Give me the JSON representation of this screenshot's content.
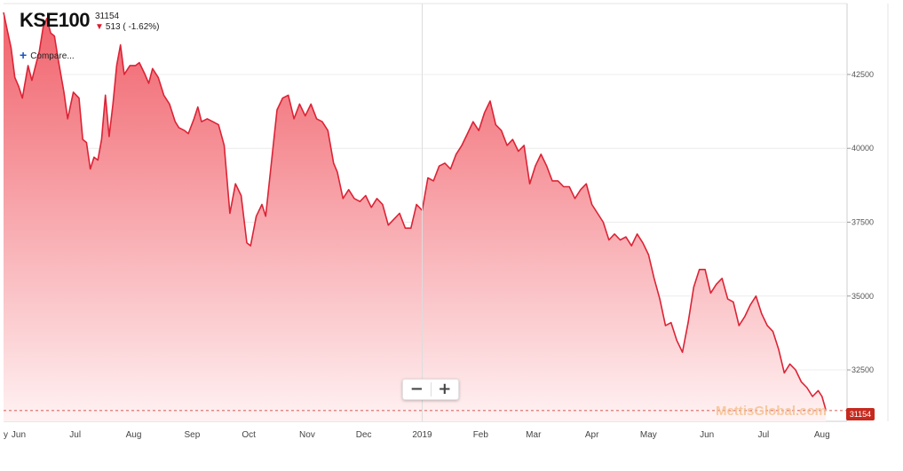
{
  "header": {
    "ticker": "KSE100",
    "price": "31154",
    "change": "513 ( -1.62%)",
    "compare_label": "Compare..."
  },
  "controls": {
    "zoom_out": "−",
    "zoom_in": "+"
  },
  "watermark": "MettisGlobal.com",
  "last_value_badge": "31154",
  "colors": {
    "line": "#dc2335",
    "fill_top": "#f05a64",
    "fill_bottom": "#fff2f3",
    "badge": "#c62a1e"
  },
  "chart_data": {
    "type": "area",
    "title": "",
    "xlabel": "",
    "ylabel": "",
    "ylim": [
      31000,
      44900
    ],
    "x_tick_labels": [
      "y",
      "Jun",
      "Jul",
      "Aug",
      "Sep",
      "Oct",
      "Nov",
      "Dec",
      "2019",
      "Feb",
      "Mar",
      "Apr",
      "May",
      "Jun",
      "Jul",
      "Aug"
    ],
    "y_ticks": [
      32500,
      35000,
      37500,
      40000,
      42500
    ],
    "y_tick_labels": [
      "32500",
      "35000",
      "37500",
      "40000",
      "42500"
    ],
    "reference_line": 31154,
    "series": [
      {
        "points": [
          [
            "2018-05-24",
            44600
          ],
          [
            "2018-05-26",
            44000
          ],
          [
            "2018-05-28",
            43400
          ],
          [
            "2018-05-30",
            42400
          ],
          [
            "2018-06-01",
            42100
          ],
          [
            "2018-06-03",
            41700
          ],
          [
            "2018-06-06",
            42800
          ],
          [
            "2018-06-08",
            42300
          ],
          [
            "2018-06-10",
            42800
          ],
          [
            "2018-06-12",
            43300
          ],
          [
            "2018-06-14",
            44100
          ],
          [
            "2018-06-16",
            44400
          ],
          [
            "2018-06-18",
            43900
          ],
          [
            "2018-06-20",
            43800
          ],
          [
            "2018-06-22",
            43000
          ],
          [
            "2018-06-25",
            41900
          ],
          [
            "2018-06-27",
            41000
          ],
          [
            "2018-06-30",
            41900
          ],
          [
            "2018-07-03",
            41700
          ],
          [
            "2018-07-05",
            40300
          ],
          [
            "2018-07-07",
            40200
          ],
          [
            "2018-07-09",
            39300
          ],
          [
            "2018-07-11",
            39700
          ],
          [
            "2018-07-13",
            39600
          ],
          [
            "2018-07-15",
            40300
          ],
          [
            "2018-07-17",
            41800
          ],
          [
            "2018-07-19",
            40400
          ],
          [
            "2018-07-21",
            41500
          ],
          [
            "2018-07-23",
            42800
          ],
          [
            "2018-07-25",
            43500
          ],
          [
            "2018-07-27",
            42500
          ],
          [
            "2018-07-30",
            42800
          ],
          [
            "2018-08-02",
            42800
          ],
          [
            "2018-08-04",
            42900
          ],
          [
            "2018-08-07",
            42500
          ],
          [
            "2018-08-09",
            42200
          ],
          [
            "2018-08-11",
            42700
          ],
          [
            "2018-08-14",
            42400
          ],
          [
            "2018-08-17",
            41800
          ],
          [
            "2018-08-20",
            41500
          ],
          [
            "2018-08-23",
            40900
          ],
          [
            "2018-08-25",
            40700
          ],
          [
            "2018-08-28",
            40600
          ],
          [
            "2018-08-30",
            40500
          ],
          [
            "2018-09-02",
            41000
          ],
          [
            "2018-09-04",
            41400
          ],
          [
            "2018-09-06",
            40900
          ],
          [
            "2018-09-09",
            41000
          ],
          [
            "2018-09-12",
            40900
          ],
          [
            "2018-09-15",
            40800
          ],
          [
            "2018-09-18",
            40100
          ],
          [
            "2018-09-21",
            37800
          ],
          [
            "2018-09-24",
            38800
          ],
          [
            "2018-09-27",
            38400
          ],
          [
            "2018-09-30",
            36800
          ],
          [
            "2018-10-02",
            36700
          ],
          [
            "2018-10-05",
            37700
          ],
          [
            "2018-10-08",
            38100
          ],
          [
            "2018-10-10",
            37700
          ],
          [
            "2018-10-13",
            39500
          ],
          [
            "2018-10-16",
            41300
          ],
          [
            "2018-10-19",
            41700
          ],
          [
            "2018-10-22",
            41800
          ],
          [
            "2018-10-25",
            41000
          ],
          [
            "2018-10-28",
            41500
          ],
          [
            "2018-10-31",
            41100
          ],
          [
            "2018-11-03",
            41500
          ],
          [
            "2018-11-06",
            41000
          ],
          [
            "2018-11-09",
            40900
          ],
          [
            "2018-11-12",
            40600
          ],
          [
            "2018-11-15",
            39500
          ],
          [
            "2018-11-17",
            39200
          ],
          [
            "2018-11-20",
            38300
          ],
          [
            "2018-11-23",
            38600
          ],
          [
            "2018-11-26",
            38300
          ],
          [
            "2018-11-29",
            38200
          ],
          [
            "2018-12-02",
            38400
          ],
          [
            "2018-12-05",
            38000
          ],
          [
            "2018-12-08",
            38300
          ],
          [
            "2018-12-11",
            38100
          ],
          [
            "2018-12-14",
            37400
          ],
          [
            "2018-12-17",
            37600
          ],
          [
            "2018-12-20",
            37800
          ],
          [
            "2018-12-23",
            37300
          ],
          [
            "2018-12-26",
            37300
          ],
          [
            "2018-12-29",
            38100
          ],
          [
            "2019-01-01",
            37900
          ],
          [
            "2019-01-04",
            39000
          ],
          [
            "2019-01-07",
            38900
          ],
          [
            "2019-01-10",
            39400
          ],
          [
            "2019-01-13",
            39500
          ],
          [
            "2019-01-16",
            39300
          ],
          [
            "2019-01-19",
            39800
          ],
          [
            "2019-01-22",
            40100
          ],
          [
            "2019-01-25",
            40500
          ],
          [
            "2019-01-28",
            40900
          ],
          [
            "2019-01-31",
            40600
          ],
          [
            "2019-02-03",
            41200
          ],
          [
            "2019-02-06",
            41600
          ],
          [
            "2019-02-09",
            40800
          ],
          [
            "2019-02-12",
            40600
          ],
          [
            "2019-02-15",
            40100
          ],
          [
            "2019-02-18",
            40300
          ],
          [
            "2019-02-21",
            39900
          ],
          [
            "2019-02-24",
            40100
          ],
          [
            "2019-02-27",
            38800
          ],
          [
            "2019-03-02",
            39400
          ],
          [
            "2019-03-05",
            39800
          ],
          [
            "2019-03-08",
            39400
          ],
          [
            "2019-03-11",
            38900
          ],
          [
            "2019-03-14",
            38900
          ],
          [
            "2019-03-17",
            38700
          ],
          [
            "2019-03-20",
            38700
          ],
          [
            "2019-03-23",
            38300
          ],
          [
            "2019-03-26",
            38600
          ],
          [
            "2019-03-29",
            38800
          ],
          [
            "2019-04-01",
            38100
          ],
          [
            "2019-04-04",
            37800
          ],
          [
            "2019-04-07",
            37500
          ],
          [
            "2019-04-10",
            36900
          ],
          [
            "2019-04-13",
            37100
          ],
          [
            "2019-04-16",
            36900
          ],
          [
            "2019-04-19",
            37000
          ],
          [
            "2019-04-22",
            36700
          ],
          [
            "2019-04-25",
            37100
          ],
          [
            "2019-04-28",
            36800
          ],
          [
            "2019-05-01",
            36400
          ],
          [
            "2019-05-04",
            35600
          ],
          [
            "2019-05-07",
            34900
          ],
          [
            "2019-05-10",
            34000
          ],
          [
            "2019-05-13",
            34100
          ],
          [
            "2019-05-16",
            33500
          ],
          [
            "2019-05-19",
            33100
          ],
          [
            "2019-05-22",
            34100
          ],
          [
            "2019-05-25",
            35300
          ],
          [
            "2019-05-28",
            35900
          ],
          [
            "2019-05-31",
            35900
          ],
          [
            "2019-06-03",
            35100
          ],
          [
            "2019-06-06",
            35400
          ],
          [
            "2019-06-09",
            35600
          ],
          [
            "2019-06-12",
            34900
          ],
          [
            "2019-06-15",
            34800
          ],
          [
            "2019-06-18",
            34000
          ],
          [
            "2019-06-21",
            34300
          ],
          [
            "2019-06-24",
            34700
          ],
          [
            "2019-06-27",
            35000
          ],
          [
            "2019-06-30",
            34400
          ],
          [
            "2019-07-03",
            34000
          ],
          [
            "2019-07-06",
            33800
          ],
          [
            "2019-07-09",
            33200
          ],
          [
            "2019-07-12",
            32400
          ],
          [
            "2019-07-15",
            32700
          ],
          [
            "2019-07-18",
            32500
          ],
          [
            "2019-07-21",
            32100
          ],
          [
            "2019-07-24",
            31900
          ],
          [
            "2019-07-27",
            31600
          ],
          [
            "2019-07-30",
            31800
          ],
          [
            "2019-08-01",
            31600
          ],
          [
            "2019-08-03",
            31154
          ]
        ]
      }
    ]
  }
}
